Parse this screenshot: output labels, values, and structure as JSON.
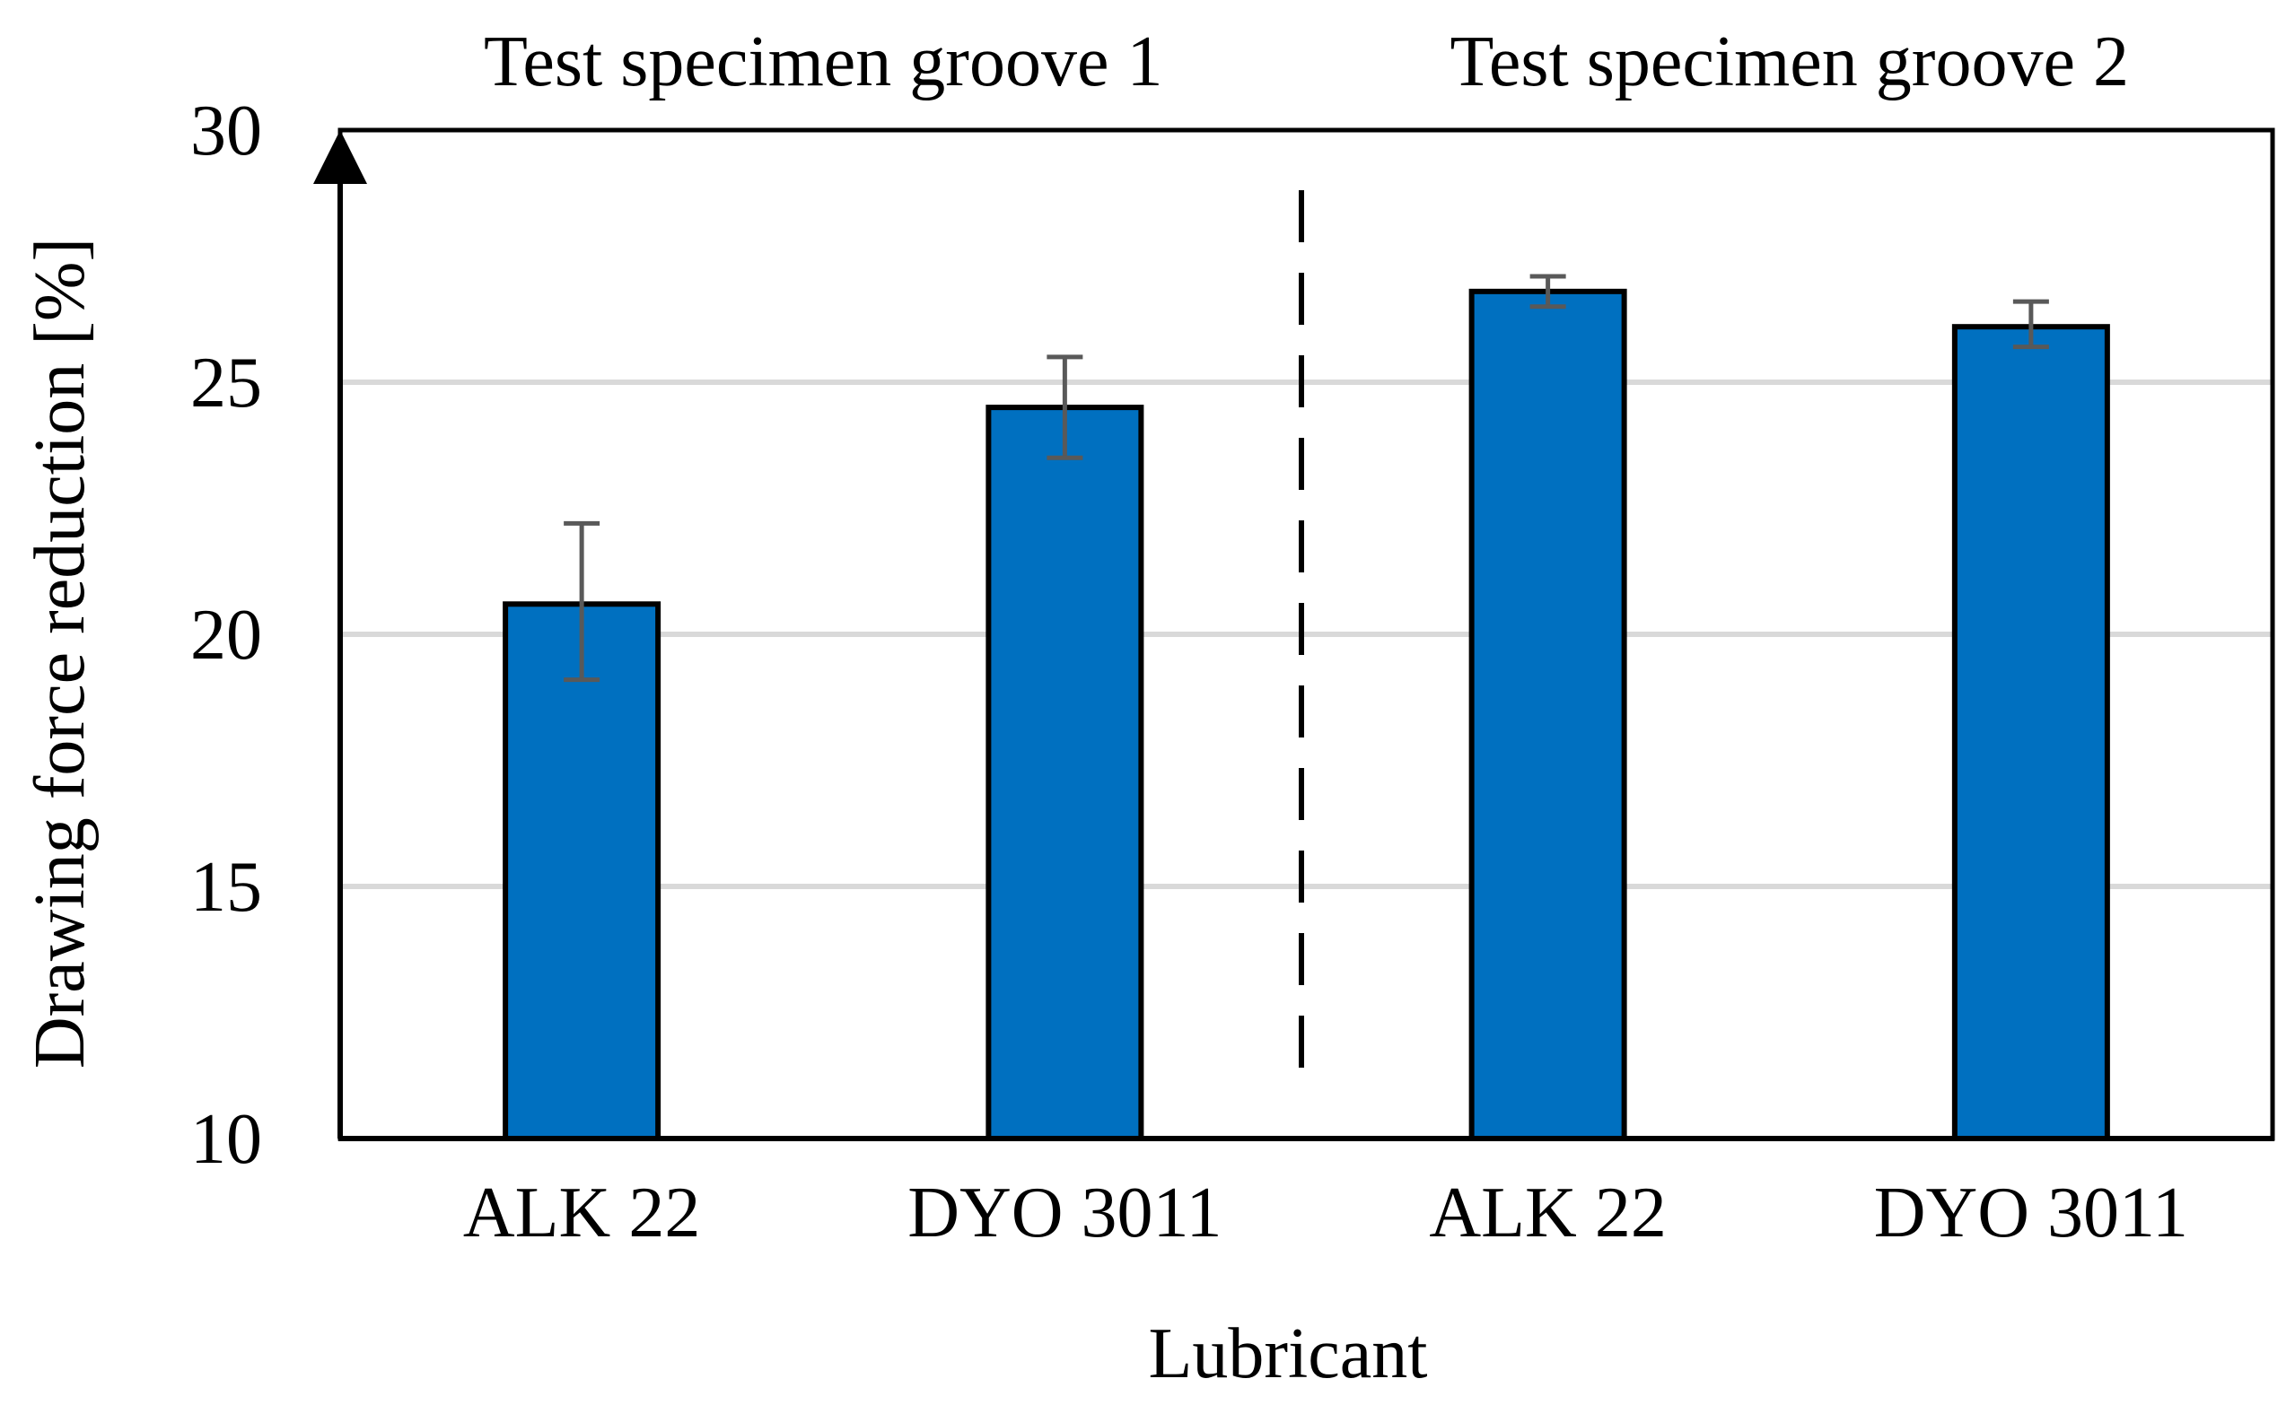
{
  "chart_data": {
    "type": "bar",
    "group_labels": [
      "Test specimen groove 1",
      "Test specimen groove 2"
    ],
    "categories": [
      "ALK 22",
      "DYO 3011",
      "ALK 22",
      "DYO 3011"
    ],
    "groups": [
      0,
      0,
      1,
      1
    ],
    "values": [
      20.6,
      24.5,
      26.8,
      26.1
    ],
    "error_low": [
      19.1,
      23.5,
      26.5,
      25.7
    ],
    "error_high": [
      22.2,
      25.5,
      27.1,
      26.6
    ],
    "xlabel": "Lubricant",
    "ylabel": "Drawing force reduction [%]",
    "ylim": [
      10,
      30
    ],
    "yticks": [
      10,
      15,
      20,
      25,
      30
    ],
    "grid": true,
    "colors": {
      "bar_fill": "#0070C0",
      "bar_stroke": "#000000",
      "error_bar": "#595959",
      "gridline": "#D9D9D9",
      "axis": "#000000"
    }
  }
}
